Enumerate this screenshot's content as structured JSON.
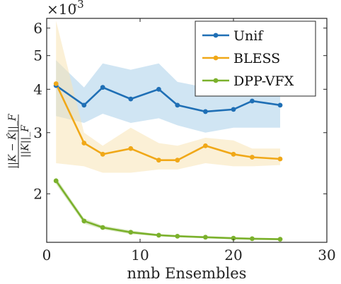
{
  "chart_data": {
    "type": "line",
    "xlabel": "nmb Ensembles",
    "ylabel_num": "||K − K̂||_F",
    "ylabel_den": "||K||_F",
    "y_scale": "log",
    "y_exponent_label": "×10",
    "y_exponent_power": "-3",
    "xlim": [
      0,
      30
    ],
    "ylim": [
      1.45,
      6.4
    ],
    "x_ticks": [
      0,
      10,
      20,
      30
    ],
    "y_ticks": [
      2,
      3,
      4,
      5,
      6
    ],
    "legend_position": "top-right",
    "series": [
      {
        "name": "Unif",
        "color": "#1f6fb5",
        "band_color": "#a9d0ea",
        "x": [
          1,
          4,
          6,
          9,
          12,
          14,
          17,
          20,
          22,
          25
        ],
        "values": [
          4.1,
          3.6,
          4.05,
          3.75,
          4.0,
          3.6,
          3.45,
          3.5,
          3.7,
          3.6
        ],
        "upper": [
          4.85,
          4.05,
          4.75,
          4.55,
          4.75,
          4.2,
          4.05,
          4.1,
          4.45,
          4.2
        ],
        "lower": [
          3.35,
          3.2,
          3.4,
          3.2,
          3.3,
          3.15,
          3.0,
          3.1,
          3.1,
          3.1
        ]
      },
      {
        "name": "BLESS",
        "color": "#f0a818",
        "band_color": "#f7e3b4",
        "x": [
          1,
          4,
          6,
          9,
          12,
          14,
          17,
          20,
          22,
          25
        ],
        "values": [
          4.15,
          2.8,
          2.6,
          2.7,
          2.5,
          2.5,
          2.75,
          2.6,
          2.55,
          2.52
        ],
        "upper": [
          6.3,
          3.0,
          2.75,
          3.1,
          2.8,
          2.75,
          2.9,
          2.85,
          2.7,
          2.7
        ],
        "lower": [
          2.45,
          2.4,
          2.3,
          2.3,
          2.35,
          2.35,
          2.45,
          2.4,
          2.4,
          2.42
        ]
      },
      {
        "name": "DPP-VFX",
        "color": "#7bb12c",
        "band_color": "#c9dfa8",
        "x": [
          1,
          4,
          6,
          9,
          12,
          14,
          17,
          20,
          22,
          25
        ],
        "values": [
          2.18,
          1.67,
          1.6,
          1.55,
          1.52,
          1.51,
          1.5,
          1.49,
          1.485,
          1.48
        ],
        "upper": [
          2.23,
          1.7,
          1.62,
          1.57,
          1.53,
          1.52,
          1.51,
          1.5,
          1.495,
          1.49
        ],
        "lower": [
          2.13,
          1.64,
          1.58,
          1.53,
          1.51,
          1.5,
          1.49,
          1.48,
          1.475,
          1.47
        ]
      }
    ]
  }
}
